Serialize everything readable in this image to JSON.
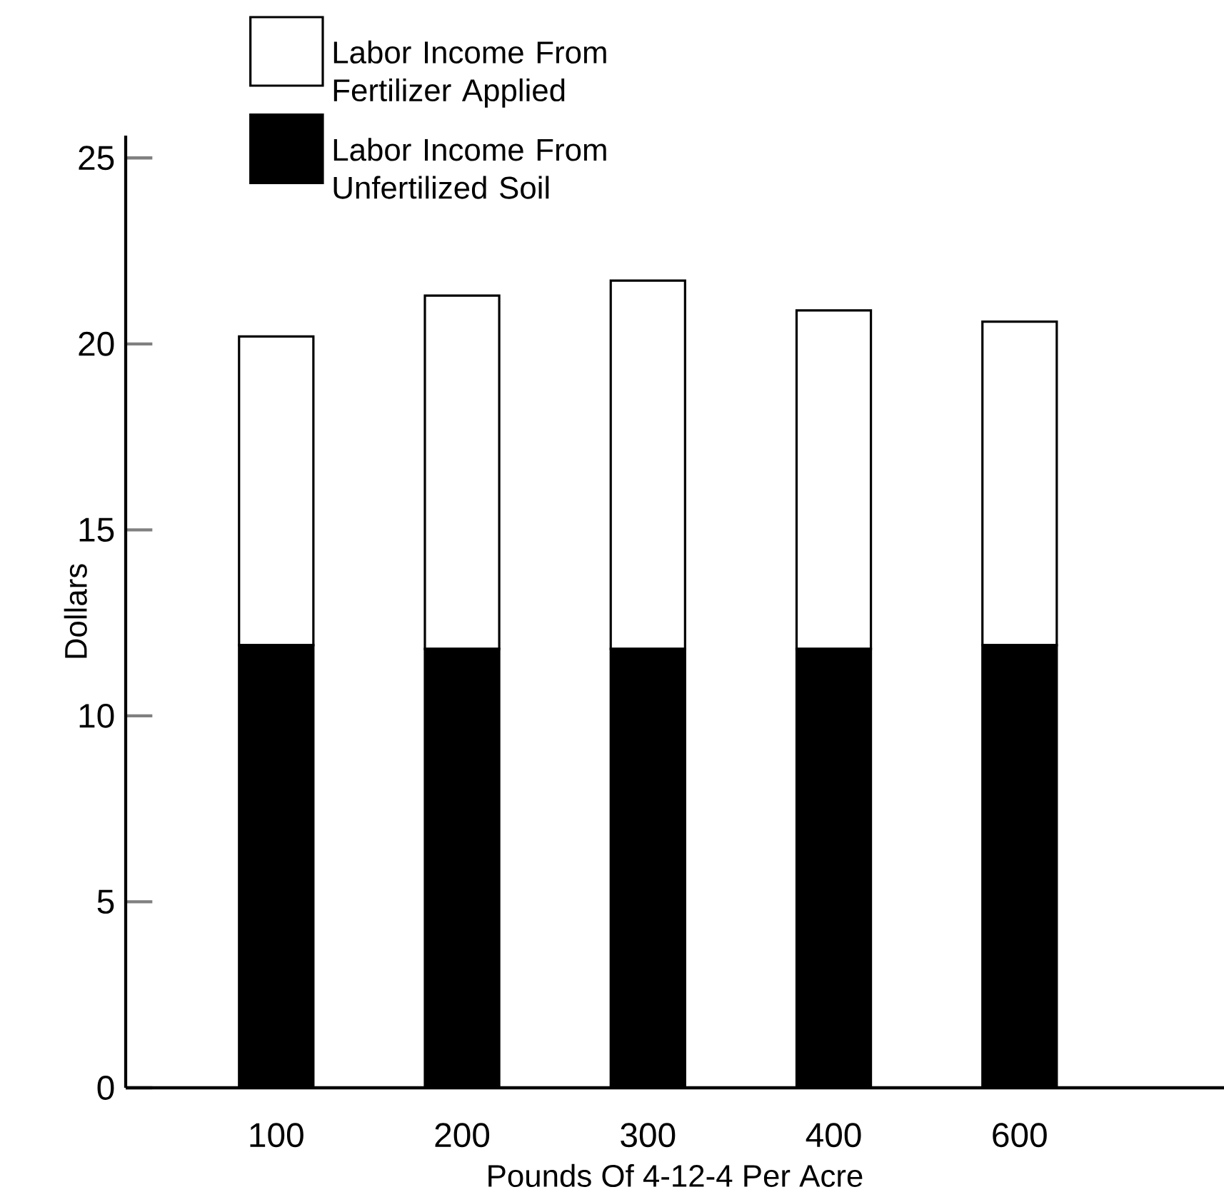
{
  "chart_data": {
    "type": "bar",
    "stacked": true,
    "xlabel": "Pounds Of 4-12-4 Per Acre",
    "ylabel": "Dollars",
    "categories": [
      "100",
      "200",
      "300",
      "400",
      "600"
    ],
    "series": [
      {
        "name": "Labor Income From Unfertilized Soil",
        "color": "#000000",
        "values": [
          11.9,
          11.8,
          11.8,
          11.8,
          11.9
        ]
      },
      {
        "name": "Labor Income From Fertilizer Applied",
        "color": "#ffffff",
        "values": [
          8.3,
          9.5,
          9.9,
          9.1,
          8.7
        ]
      }
    ],
    "ylim": [
      0,
      25.6
    ],
    "yticks": [
      0,
      5,
      10,
      15,
      20,
      25
    ],
    "legend": "top left"
  }
}
